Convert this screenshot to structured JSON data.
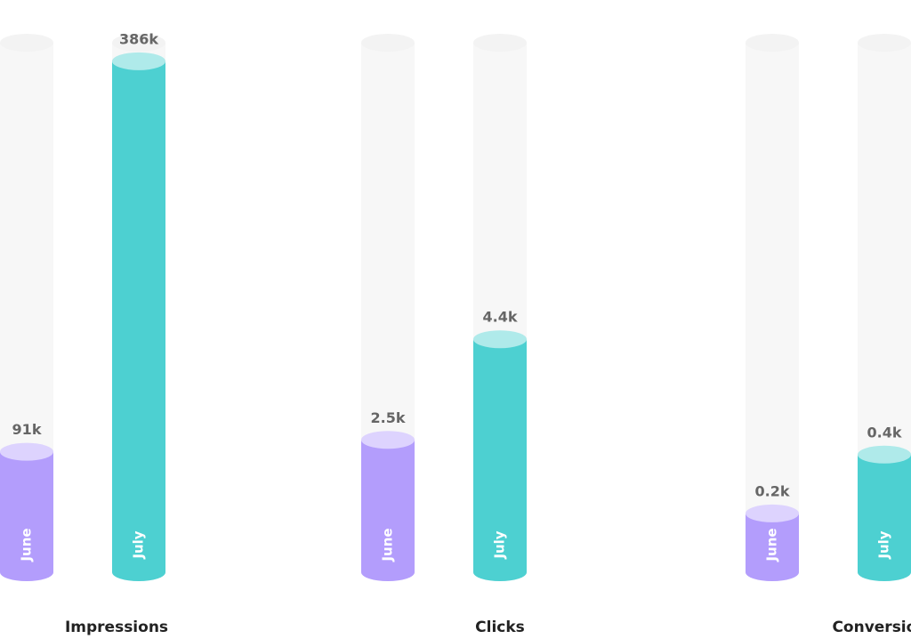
{
  "chart_data": [
    {
      "type": "bar",
      "title": "Impressions",
      "categories": [
        "June",
        "July"
      ],
      "values": [
        91000,
        386000
      ],
      "value_labels": [
        "91k",
        "386k"
      ],
      "colors": [
        "#b39dfc",
        "#4dd0d1"
      ],
      "ylim": [
        0,
        400000
      ]
    },
    {
      "type": "bar",
      "title": "Clicks",
      "categories": [
        "June",
        "July"
      ],
      "values": [
        2500,
        4400
      ],
      "value_labels": [
        "2.5k",
        "4.4k"
      ],
      "colors": [
        "#b39dfc",
        "#4dd0d1"
      ],
      "ylim": [
        0,
        10000
      ]
    },
    {
      "type": "bar",
      "title": "Conversions",
      "categories": [
        "June",
        "July"
      ],
      "values": [
        200,
        400
      ],
      "value_labels": [
        "0.2k",
        "0.4k"
      ],
      "colors": [
        "#b39dfc",
        "#4dd0d1"
      ],
      "ylim": [
        0,
        1800
      ]
    }
  ]
}
